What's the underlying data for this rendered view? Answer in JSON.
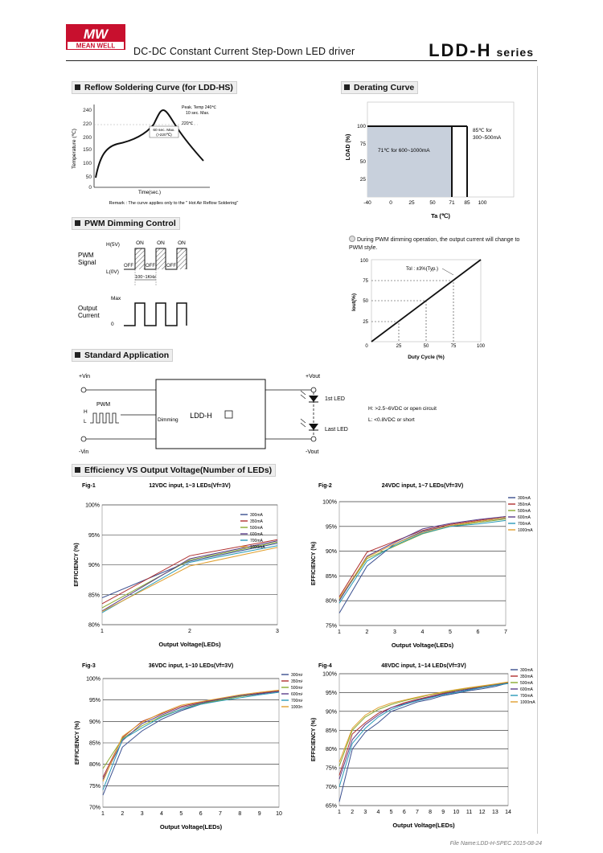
{
  "header": {
    "brand_top": "MW",
    "brand_name": "MEAN WELL",
    "title": "DC-DC Constant Current Step-Down LED driver",
    "series": "LDD-H",
    "series_suffix": "series"
  },
  "sections": {
    "reflow": "Reflow Soldering Curve (for LDD-HS)",
    "derating": "Derating Curve",
    "pwm": "PWM Dimming Control",
    "standard": "Standard Application",
    "efficiency": "Efficiency VS Output Voltage(Number of LEDs)"
  },
  "reflow": {
    "ylabel": "Temperature (℃)",
    "xlabel": "Time(sec.)",
    "yticks": [
      "240",
      "220",
      "200",
      "150",
      "100",
      "50",
      "0"
    ],
    "peak_label_1": "Peak. Temp 240℃",
    "peak_label_2": "10 sec. Max.",
    "t220": "220℃",
    "box_1": "60 sec. Max.",
    "box_2": "(>220℃)",
    "remark": "Remark : The curve applies only to the \" Hot Air Reflow Soldering\""
  },
  "derating": {
    "ylabel": "LOAD (%)",
    "xlabel": "Ta (℃)",
    "yticks": [
      "100",
      "75",
      "50",
      "25"
    ],
    "xticks": [
      "-40",
      "0",
      "25",
      "50",
      "71",
      "85",
      "100"
    ],
    "label_low": "71℃ for 600~1000mA",
    "label_high_1": "85℃ for",
    "label_high_2": "300~500mA"
  },
  "pwm": {
    "h5v": "H(5V)",
    "l0v": "L(0V)",
    "signal_1": "PWM",
    "signal_2": "Signal",
    "on": "ON",
    "off": "OFF",
    "freq": "100~1KHz",
    "max": "Max",
    "zero": "0",
    "output_1": "Output",
    "output_2": "Current",
    "note_1": "During PWM dimming operation, the output current will change to",
    "note_2": "PWM style.",
    "duty_ylabel": "Iout(%)",
    "duty_xlabel": "Duty Cycle (%)",
    "duty_ticks": [
      "0",
      "25",
      "50",
      "75",
      "100"
    ],
    "tol": "Tol : ±3%(Typ.)"
  },
  "standard": {
    "vin_pos": "+Vin",
    "vin_neg": "-Vin",
    "vout_pos": "+Vout",
    "vout_neg": "-Vout",
    "pwm": "PWM",
    "h": "H",
    "l": "L",
    "dimming": "Dimming",
    "model": "LDD-H",
    "led1": "1st LED",
    "led_last": "Last LED",
    "note_h": "H: >2.5~6VDC or open circuit",
    "note_l": "L: <0.8VDC or short"
  },
  "legend_colors": [
    "#3a4f8f",
    "#b03030",
    "#8aaa30",
    "#5a3e8a",
    "#2a9ab8",
    "#e0a030"
  ],
  "legend_labels": [
    "300mA",
    "350mA",
    "500mA",
    "600mA",
    "700mA",
    "1000mA"
  ],
  "chart_data": [
    {
      "type": "line",
      "fig": "Fig-1",
      "title": "12VDC input, 1~3 LEDs(Vf=3V)",
      "xlabel": "Output Voltage(LEDs)",
      "ylabel": "EFFICIENCY (%)",
      "x": [
        1,
        2,
        3
      ],
      "xlim": [
        1,
        3
      ],
      "ylim": [
        80,
        100
      ],
      "yticks": [
        80,
        85,
        90,
        95,
        100
      ],
      "series": [
        {
          "name": "300mA",
          "values": [
            84.5,
            90.6,
            93.6
          ]
        },
        {
          "name": "350mA",
          "values": [
            83.5,
            91.5,
            94.2
          ]
        },
        {
          "name": "500mA",
          "values": [
            82.8,
            90.8,
            93.8
          ]
        },
        {
          "name": "600mA",
          "values": [
            82.3,
            91.0,
            94.0
          ]
        },
        {
          "name": "700mA",
          "values": [
            82.0,
            90.4,
            93.2
          ]
        },
        {
          "name": "1000mA",
          "values": [
            82.2,
            89.8,
            92.9
          ]
        }
      ]
    },
    {
      "type": "line",
      "fig": "Fig-2",
      "title": "24VDC input, 1~7 LEDs(Vf=3V)",
      "xlabel": "Output Voltage(LEDs)",
      "ylabel": "EFFICIENCY (%)",
      "x": [
        1,
        2,
        3,
        4,
        5,
        6,
        7
      ],
      "xlim": [
        1,
        7
      ],
      "ylim": [
        75,
        100
      ],
      "yticks": [
        75,
        80,
        85,
        90,
        95,
        100
      ],
      "series": [
        {
          "name": "300mA",
          "values": [
            77.5,
            87.0,
            91.5,
            94.0,
            95.2,
            96.0,
            96.7
          ]
        },
        {
          "name": "350mA",
          "values": [
            80.8,
            89.8,
            92.0,
            94.2,
            95.4,
            96.2,
            97.0
          ]
        },
        {
          "name": "500mA",
          "values": [
            80.2,
            88.5,
            91.0,
            93.5,
            95.0,
            95.8,
            96.5
          ]
        },
        {
          "name": "600mA",
          "values": [
            80.0,
            89.0,
            91.8,
            94.5,
            95.6,
            96.4,
            97.0
          ]
        },
        {
          "name": "700mA",
          "values": [
            79.5,
            88.0,
            91.2,
            93.6,
            95.0,
            95.5,
            96.2
          ]
        },
        {
          "name": "1000mA",
          "values": [
            80.5,
            88.8,
            91.5,
            93.8,
            95.2,
            96.0,
            96.8
          ]
        }
      ]
    },
    {
      "type": "line",
      "fig": "Fig-3",
      "title": "36VDC input, 1~10 LEDs(Vf=3V)",
      "xlabel": "Output Voltage(LEDs)",
      "ylabel": "EFFICIENCY (%)",
      "x": [
        1,
        2,
        3,
        4,
        5,
        6,
        7,
        8,
        9,
        10
      ],
      "xlim": [
        1,
        10
      ],
      "ylim": [
        70,
        100
      ],
      "yticks": [
        70,
        75,
        80,
        85,
        90,
        95,
        100
      ],
      "series": [
        {
          "name": "300mA",
          "values": [
            72.8,
            84.0,
            87.8,
            90.5,
            92.5,
            94.0,
            95.0,
            95.8,
            96.4,
            97.0
          ]
        },
        {
          "name": "350mA",
          "values": [
            77.0,
            86.2,
            90.0,
            91.8,
            93.5,
            94.5,
            95.3,
            96.0,
            96.6,
            97.2
          ]
        },
        {
          "name": "500mA",
          "values": [
            79.0,
            86.0,
            89.0,
            91.2,
            92.8,
            94.2,
            95.0,
            95.8,
            96.5,
            97.0
          ]
        },
        {
          "name": "600mA",
          "values": [
            76.5,
            85.5,
            89.5,
            91.5,
            93.2,
            94.3,
            95.2,
            96.0,
            96.5,
            97.0
          ]
        },
        {
          "name": "700mA",
          "values": [
            74.0,
            85.8,
            88.5,
            91.0,
            92.8,
            94.0,
            94.8,
            95.5,
            96.2,
            96.8
          ]
        },
        {
          "name": "1000mA",
          "values": [
            76.0,
            86.5,
            89.8,
            92.0,
            93.8,
            94.6,
            95.4,
            96.2,
            96.8,
            97.3
          ]
        }
      ]
    },
    {
      "type": "line",
      "fig": "Fig-4",
      "title": "48VDC input, 1~14 LEDs(Vf=3V)",
      "xlabel": "Output Voltage(LEDs)",
      "ylabel": "EFFICIENCY (%)",
      "x": [
        1,
        2,
        3,
        4,
        5,
        6,
        7,
        8,
        9,
        10,
        11,
        12,
        13,
        14
      ],
      "xlim": [
        1,
        14
      ],
      "ylim": [
        65,
        100
      ],
      "yticks": [
        65,
        70,
        75,
        80,
        85,
        90,
        95,
        100
      ],
      "series": [
        {
          "name": "300mA",
          "values": [
            66.0,
            80.0,
            84.5,
            87.0,
            90.0,
            91.2,
            92.5,
            93.2,
            94.2,
            94.8,
            95.5,
            96.0,
            96.6,
            97.5
          ]
        },
        {
          "name": "350mA",
          "values": [
            73.0,
            84.0,
            87.0,
            89.5,
            91.0,
            92.3,
            93.2,
            94.0,
            94.8,
            95.4,
            96.0,
            96.6,
            97.1,
            97.6
          ]
        },
        {
          "name": "500mA",
          "values": [
            75.5,
            85.0,
            88.5,
            90.5,
            91.8,
            92.8,
            93.6,
            94.4,
            95.0,
            95.6,
            96.2,
            96.7,
            97.2,
            97.7
          ]
        },
        {
          "name": "600mA",
          "values": [
            72.0,
            82.5,
            86.5,
            89.0,
            91.0,
            92.0,
            93.0,
            93.8,
            94.6,
            95.3,
            95.9,
            96.4,
            97.0,
            97.5
          ]
        },
        {
          "name": "700mA",
          "values": [
            70.0,
            81.5,
            85.5,
            88.5,
            90.5,
            91.8,
            92.8,
            93.6,
            94.4,
            95.0,
            95.7,
            96.3,
            96.9,
            97.4
          ]
        },
        {
          "name": "1000mA",
          "values": [
            76.5,
            85.5,
            89.0,
            91.0,
            92.2,
            93.0,
            93.8,
            94.5,
            95.2,
            95.8,
            96.3,
            96.8,
            97.3,
            97.8
          ]
        }
      ]
    }
  ],
  "footer": "File Name:LDD-H-SPEC   2015-08-24"
}
